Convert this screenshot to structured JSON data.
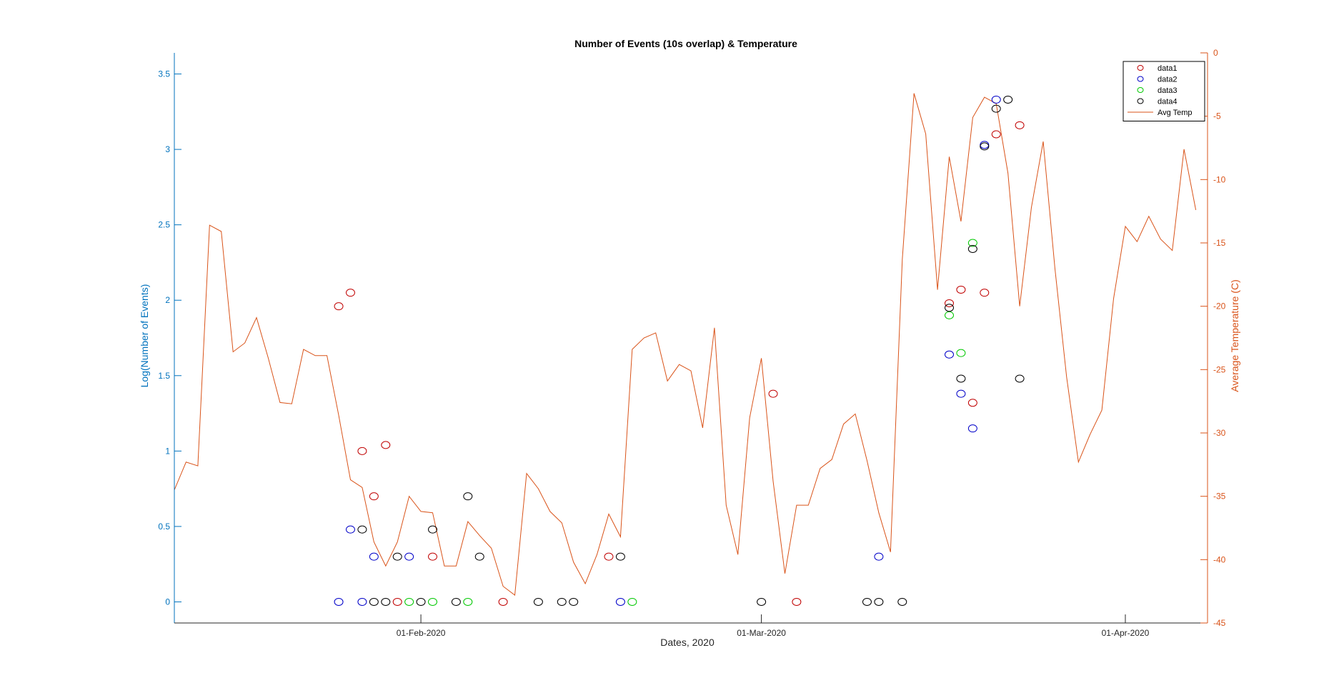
{
  "chart_data": {
    "type": "scatter+line",
    "title": "Number of Events (10s overlap) & Temperature",
    "xlabel": "Dates, 2020",
    "ylabel_left": "Log(Number of Events)",
    "ylabel_right": "Average Temperature (C)",
    "xlim": [
      "2020-01-11",
      "2020-04-08"
    ],
    "ylim_left": [
      -0.14,
      3.64
    ],
    "ylim_right": [
      -45,
      0
    ],
    "x_ticks": [
      {
        "date": "2020-02-01",
        "label": "01-Feb-2020"
      },
      {
        "date": "2020-03-01",
        "label": "01-Mar-2020"
      },
      {
        "date": "2020-04-01",
        "label": "01-Apr-2020"
      }
    ],
    "y_ticks_left": [
      {
        "value": 0,
        "label": "0"
      },
      {
        "value": 0.5,
        "label": "0.5"
      },
      {
        "value": 1,
        "label": "1"
      },
      {
        "value": 1.5,
        "label": "1.5"
      },
      {
        "value": 2,
        "label": "2"
      },
      {
        "value": 2.5,
        "label": "2.5"
      },
      {
        "value": 3,
        "label": "3"
      },
      {
        "value": 3.5,
        "label": "3.5"
      }
    ],
    "y_ticks_right": [
      {
        "value": 0,
        "label": "0"
      },
      {
        "value": -5,
        "label": "-5"
      },
      {
        "value": -10,
        "label": "-10"
      },
      {
        "value": -15,
        "label": "-15"
      },
      {
        "value": -20,
        "label": "-20"
      },
      {
        "value": -25,
        "label": "-25"
      },
      {
        "value": -30,
        "label": "-30"
      },
      {
        "value": -35,
        "label": "-35"
      },
      {
        "value": -40,
        "label": "-40"
      },
      {
        "value": -45,
        "label": "-45"
      }
    ],
    "grid": false,
    "legend_position": "top-right",
    "colors": {
      "data1": "#C00000",
      "data2": "#0000C8",
      "data3": "#00C800",
      "data4": "#000000",
      "temp": "#D95319",
      "left_axis": "#0072BD",
      "right_axis": "#D95319"
    },
    "series": [
      {
        "name": "data1",
        "marker": "circle",
        "color": "#C00000",
        "points": [
          [
            "2020-01-25",
            1.96
          ],
          [
            "2020-01-26",
            2.05
          ],
          [
            "2020-01-27",
            1.0
          ],
          [
            "2020-01-28",
            0.7
          ],
          [
            "2020-01-29",
            1.04
          ],
          [
            "2020-01-30",
            0.0
          ],
          [
            "2020-02-02",
            0.3
          ],
          [
            "2020-02-08",
            0.0
          ],
          [
            "2020-02-17",
            0.3
          ],
          [
            "2020-03-02",
            1.38
          ],
          [
            "2020-03-04",
            0.0
          ],
          [
            "2020-03-17",
            1.98
          ],
          [
            "2020-03-18",
            2.07
          ],
          [
            "2020-03-19",
            1.32
          ],
          [
            "2020-03-20",
            2.05
          ],
          [
            "2020-03-21",
            3.1
          ],
          [
            "2020-03-23",
            3.16
          ]
        ]
      },
      {
        "name": "data2",
        "marker": "circle",
        "color": "#0000C8",
        "points": [
          [
            "2020-01-25",
            0.0
          ],
          [
            "2020-01-26",
            0.48
          ],
          [
            "2020-01-27",
            0.0
          ],
          [
            "2020-01-28",
            0.3
          ],
          [
            "2020-01-31",
            0.3
          ],
          [
            "2020-02-18",
            0.0
          ],
          [
            "2020-03-11",
            0.3
          ],
          [
            "2020-03-17",
            1.64
          ],
          [
            "2020-03-18",
            1.38
          ],
          [
            "2020-03-19",
            1.15
          ],
          [
            "2020-03-20",
            3.03
          ],
          [
            "2020-03-21",
            3.33
          ]
        ]
      },
      {
        "name": "data3",
        "marker": "circle",
        "color": "#00C800",
        "points": [
          [
            "2020-01-31",
            0.0
          ],
          [
            "2020-02-02",
            0.0
          ],
          [
            "2020-02-05",
            0.0
          ],
          [
            "2020-02-19",
            0.0
          ],
          [
            "2020-03-17",
            1.9
          ],
          [
            "2020-03-18",
            1.65
          ],
          [
            "2020-03-19",
            2.38
          ]
        ]
      },
      {
        "name": "data4",
        "marker": "circle",
        "color": "#000000",
        "points": [
          [
            "2020-01-27",
            0.48
          ],
          [
            "2020-01-28",
            0.0
          ],
          [
            "2020-01-29",
            0.0
          ],
          [
            "2020-01-30",
            0.3
          ],
          [
            "2020-02-01",
            0.0
          ],
          [
            "2020-02-02",
            0.48
          ],
          [
            "2020-02-04",
            0.0
          ],
          [
            "2020-02-05",
            0.7
          ],
          [
            "2020-02-06",
            0.3
          ],
          [
            "2020-02-11",
            0.0
          ],
          [
            "2020-02-13",
            0.0
          ],
          [
            "2020-02-14",
            0.0
          ],
          [
            "2020-02-18",
            0.3
          ],
          [
            "2020-03-01",
            0.0
          ],
          [
            "2020-03-10",
            0.0
          ],
          [
            "2020-03-11",
            0.0
          ],
          [
            "2020-03-13",
            0.0
          ],
          [
            "2020-03-17",
            1.95
          ],
          [
            "2020-03-18",
            1.48
          ],
          [
            "2020-03-19",
            2.34
          ],
          [
            "2020-03-20",
            3.02
          ],
          [
            "2020-03-21",
            3.27
          ],
          [
            "2020-03-22",
            3.33
          ],
          [
            "2020-03-23",
            1.48
          ]
        ]
      }
    ],
    "temperature_series": {
      "name": "Avg Temp",
      "color": "#D95319",
      "start_date": "2020-01-11",
      "values": [
        -34.5,
        -32.3,
        -32.6,
        -13.6,
        -14.1,
        -23.6,
        -22.9,
        -20.9,
        -24.1,
        -27.6,
        -27.7,
        -23.4,
        -23.9,
        -23.9,
        -28.6,
        -33.7,
        -34.3,
        -38.6,
        -40.5,
        -38.6,
        -35.0,
        -36.2,
        -36.3,
        -40.5,
        -40.5,
        -37.0,
        -38.1,
        -39.1,
        -42.1,
        -42.8,
        -33.2,
        -34.4,
        -36.2,
        -37.1,
        -40.2,
        -41.9,
        -39.6,
        -36.4,
        -38.2,
        -23.4,
        -22.5,
        -22.1,
        -25.9,
        -24.6,
        -25.1,
        -29.6,
        -21.7,
        -35.7,
        -39.6,
        -28.8,
        -24.1,
        -33.8,
        -41.1,
        -35.7,
        -35.7,
        -32.8,
        -32.1,
        -29.3,
        -28.5,
        -32.2,
        -36.3,
        -39.4,
        -16.3,
        -3.2,
        -6.4,
        -18.7,
        -8.2,
        -13.3,
        -5.1,
        -3.5,
        -4.0,
        -9.5,
        -20.0,
        -12.2,
        -7.0,
        -17.0,
        -25.6,
        -32.3,
        -30.1,
        -28.2,
        -19.4,
        -13.7,
        -14.9,
        -12.9,
        -14.7,
        -15.6,
        -7.6,
        -12.4
      ]
    },
    "legend": [
      "data1",
      "data2",
      "data3",
      "data4",
      "Avg Temp"
    ]
  }
}
